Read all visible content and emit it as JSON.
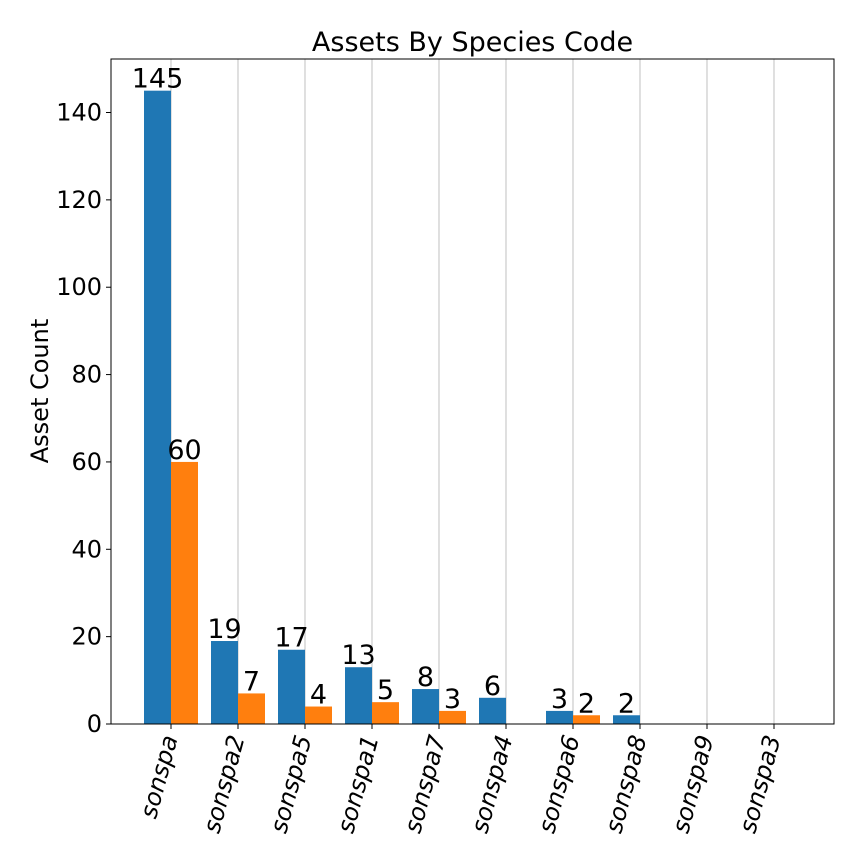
{
  "chart_data": {
    "type": "bar",
    "title": "Assets By Species Code",
    "xlabel": "",
    "ylabel": "Asset Count",
    "categories": [
      "sonspa",
      "sonspa2",
      "sonspa5",
      "sonspa1",
      "sonspa7",
      "sonspa4",
      "sonspa6",
      "sonspa8",
      "sonspa9",
      "sonspa3"
    ],
    "series": [
      {
        "values": [
          145,
          19,
          17,
          13,
          8,
          6,
          3,
          2,
          0,
          0
        ],
        "labels": [
          "145",
          "19",
          "17",
          "13",
          "8",
          "6",
          "3",
          "2",
          "",
          ""
        ],
        "color": "#1f77b4"
      },
      {
        "values": [
          60,
          7,
          4,
          5,
          3,
          0,
          2,
          0,
          0,
          0
        ],
        "labels": [
          "60",
          "7",
          "4",
          "5",
          "3",
          "",
          "2",
          "",
          "",
          ""
        ],
        "color": "#ff7f0e"
      }
    ],
    "ylim": [
      0,
      152.25
    ],
    "yticks": [
      0,
      20,
      40,
      60,
      80,
      100,
      120,
      140
    ],
    "grid": "vertical",
    "legend": "none",
    "x_tick_rotation": "steep, italic"
  }
}
